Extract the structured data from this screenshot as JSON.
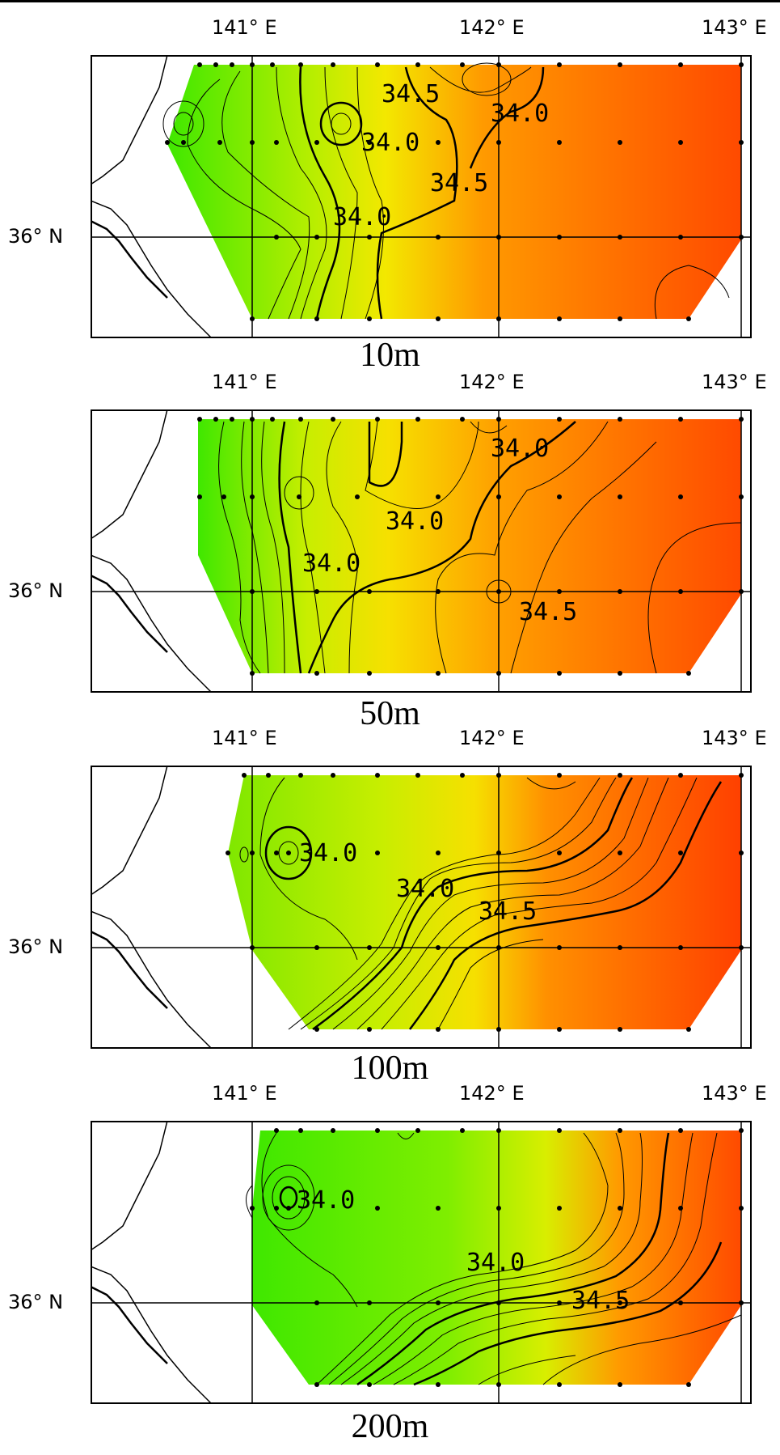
{
  "axis": {
    "lon_labels": [
      "141° E",
      "142° E",
      "143° E"
    ],
    "lat_label": "36° N"
  },
  "colors": {
    "low_salinity": "#3fe800",
    "mid_salinity": "#f6e800",
    "high_salinity": "#ff4a00"
  },
  "panels": [
    {
      "depth": "10m",
      "contour_labels": [
        "34.5",
        "34.0",
        "34.0",
        "34.5",
        "34.0"
      ]
    },
    {
      "depth": "50m",
      "contour_labels": [
        "34.0",
        "34.0",
        "34.0",
        "34.5"
      ]
    },
    {
      "depth": "100m",
      "contour_labels": [
        "34.0",
        "34.0",
        "34.5"
      ]
    },
    {
      "depth": "200m",
      "contour_labels": [
        "34.0",
        "34.0",
        "34.5"
      ]
    }
  ]
}
